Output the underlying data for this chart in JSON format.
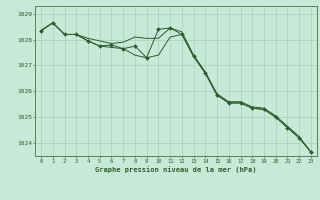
{
  "title": "Graphe pression niveau de la mer (hPa)",
  "background_color": "#c8e8d8",
  "grid_color": "#a0c8b0",
  "line_color": "#2a5e2a",
  "marker_color": "#2a5e2a",
  "xlim": [
    -0.5,
    23.5
  ],
  "ylim": [
    1023.5,
    1029.3
  ],
  "yticks": [
    1024,
    1025,
    1026,
    1027,
    1028,
    1029
  ],
  "xticks": [
    0,
    1,
    2,
    3,
    4,
    5,
    6,
    7,
    8,
    9,
    10,
    11,
    12,
    13,
    14,
    15,
    16,
    17,
    18,
    19,
    20,
    21,
    22,
    23
  ],
  "series1_x": [
    0,
    1,
    2,
    3,
    4,
    5,
    6,
    7,
    8,
    9,
    10,
    11,
    12,
    13,
    14,
    15,
    16,
    17,
    18,
    19,
    20,
    21,
    22,
    23
  ],
  "series1_y": [
    1028.35,
    1028.65,
    1028.2,
    1028.2,
    1027.95,
    1027.75,
    1027.8,
    1027.65,
    1027.75,
    1027.3,
    1028.4,
    1028.45,
    1028.2,
    1027.35,
    1026.7,
    1025.85,
    1025.55,
    1025.55,
    1025.35,
    1025.3,
    1025.0,
    1024.6,
    1024.2,
    1023.65
  ],
  "series2_x": [
    0,
    1,
    2,
    3,
    4,
    5,
    6,
    7,
    8,
    9,
    10,
    11,
    12,
    13,
    14,
    15,
    16,
    17,
    18,
    19,
    20,
    21,
    22,
    23
  ],
  "series2_y": [
    1028.35,
    1028.65,
    1028.2,
    1028.2,
    1028.05,
    1027.95,
    1027.85,
    1027.9,
    1028.1,
    1028.05,
    1028.05,
    1028.45,
    1028.3,
    1027.4,
    1026.75,
    1025.9,
    1025.6,
    1025.6,
    1025.4,
    1025.35,
    1025.05,
    1024.65,
    1024.25,
    1023.65
  ],
  "series3_x": [
    0,
    1,
    2,
    3,
    4,
    5,
    6,
    7,
    8,
    9,
    10,
    11,
    12,
    13,
    14,
    15,
    16,
    17,
    18,
    19,
    20,
    21,
    22,
    23
  ],
  "series3_y": [
    1028.35,
    1028.65,
    1028.2,
    1028.2,
    1027.95,
    1027.75,
    1027.7,
    1027.65,
    1027.4,
    1027.3,
    1027.4,
    1028.1,
    1028.2,
    1027.35,
    1026.7,
    1025.85,
    1025.55,
    1025.55,
    1025.35,
    1025.3,
    1025.0,
    1024.6,
    1024.2,
    1023.65
  ]
}
